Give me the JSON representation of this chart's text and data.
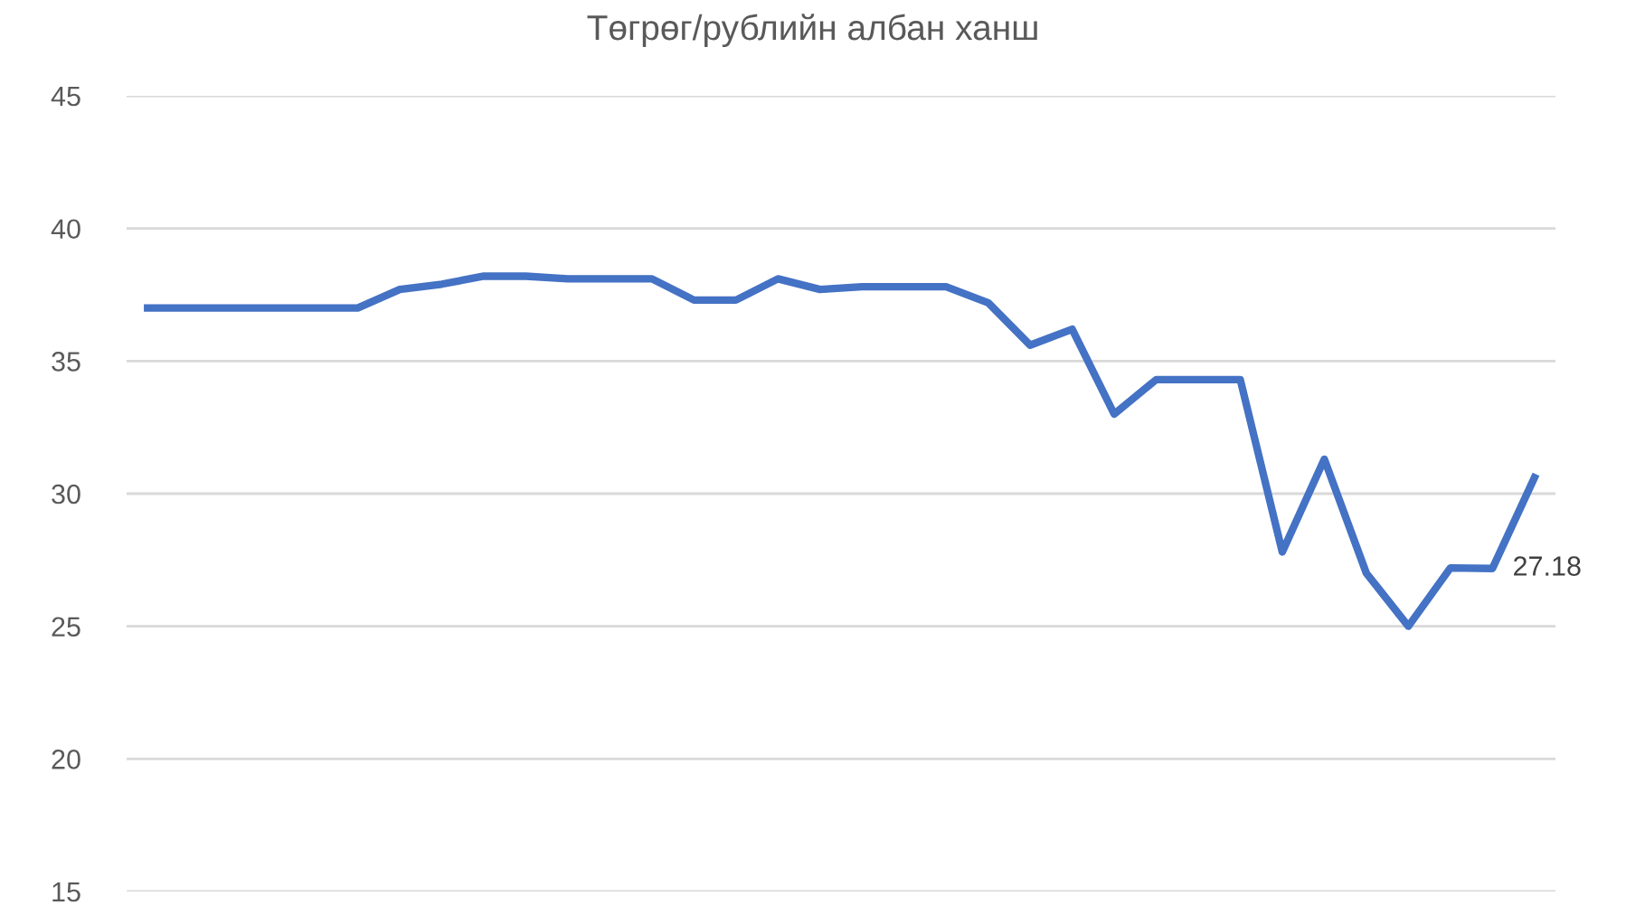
{
  "chart_data": {
    "type": "line",
    "title": "Төгрөг/рублийн албан ханш",
    "categories": [
      null,
      null,
      null,
      null,
      null,
      null,
      null,
      null,
      null,
      null,
      null,
      null,
      null,
      null,
      null,
      null,
      null,
      null,
      null,
      null,
      null,
      null,
      null,
      null,
      null,
      null,
      null,
      null,
      null,
      null,
      null,
      null,
      null,
      null
    ],
    "series": [
      {
        "color": "#4472c4",
        "values": [
          37.0,
          37.0,
          37.0,
          37.0,
          37.0,
          37.0,
          37.7,
          37.9,
          38.2,
          38.2,
          38.1,
          38.1,
          38.1,
          37.3,
          37.3,
          38.1,
          37.7,
          37.8,
          37.8,
          37.8,
          37.2,
          35.6,
          36.2,
          33.0,
          34.3,
          34.3,
          34.3,
          27.8,
          31.3,
          27.0,
          25.0,
          27.2,
          27.18,
          30.6
        ],
        "value_labels": [
          null,
          null,
          null,
          null,
          null,
          null,
          null,
          null,
          null,
          null,
          null,
          null,
          null,
          null,
          null,
          null,
          null,
          null,
          null,
          null,
          null,
          null,
          null,
          null,
          null,
          null,
          null,
          null,
          null,
          null,
          null,
          null,
          "27.18",
          null
        ]
      }
    ],
    "ylim": [
      15,
      45
    ],
    "yticks": [
      15,
      20,
      25,
      30,
      35,
      40,
      45
    ],
    "grid": "y",
    "marker": "none",
    "line_style": "solid"
  }
}
